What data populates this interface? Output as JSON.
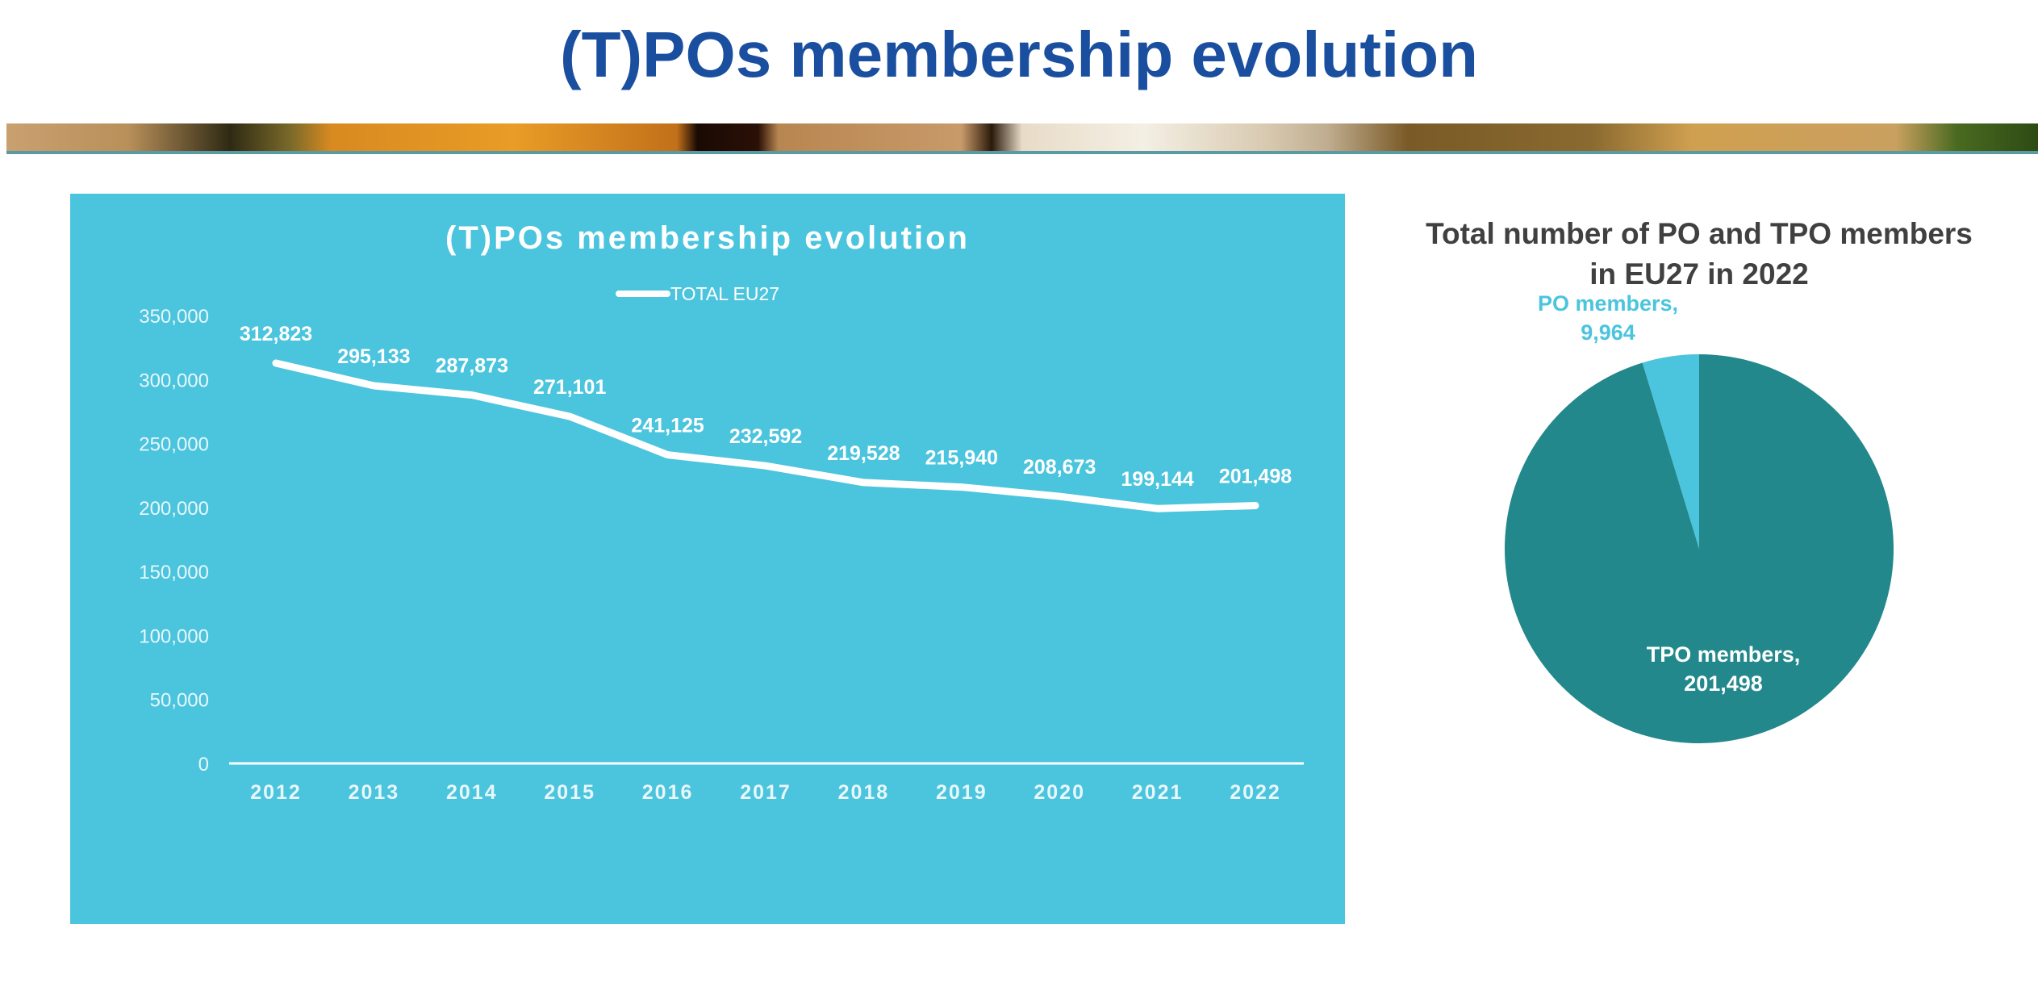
{
  "page": {
    "title": "(T)POs membership evolution"
  },
  "colors": {
    "title": "#1a4fa0",
    "panel": "#4bc4dd",
    "line": "#ffffff",
    "tpo": "#22888b",
    "po": "#4bc4dd"
  },
  "chart_data": [
    {
      "type": "line",
      "title": "(T)POs membership evolution",
      "categories": [
        "2012",
        "2013",
        "2014",
        "2015",
        "2016",
        "2017",
        "2018",
        "2019",
        "2020",
        "2021",
        "2022"
      ],
      "series": [
        {
          "name": "TOTAL EU27",
          "values": [
            312823,
            295133,
            287873,
            271101,
            241125,
            232592,
            219528,
            215940,
            208673,
            199144,
            201498
          ]
        }
      ],
      "data_labels": [
        "312,823",
        "295,133",
        "287,873",
        "271,101",
        "241,125",
        "232,592",
        "219,528",
        "215,940",
        "208,673",
        "199,144",
        "201,498"
      ],
      "ylim": [
        0,
        350000
      ],
      "yticks": [
        "0",
        "50,000",
        "100,000",
        "150,000",
        "200,000",
        "250,000",
        "300,000",
        "350,000"
      ],
      "legend": "top",
      "grid": false
    },
    {
      "type": "pie",
      "title_lines": [
        "Total number of PO and TPO members",
        "in EU27 in 2022"
      ],
      "slices": [
        {
          "name": "TPO members,",
          "value": 201498,
          "label": "201,498"
        },
        {
          "name": "PO members,",
          "value": 9964,
          "label": "9,964"
        }
      ]
    }
  ]
}
